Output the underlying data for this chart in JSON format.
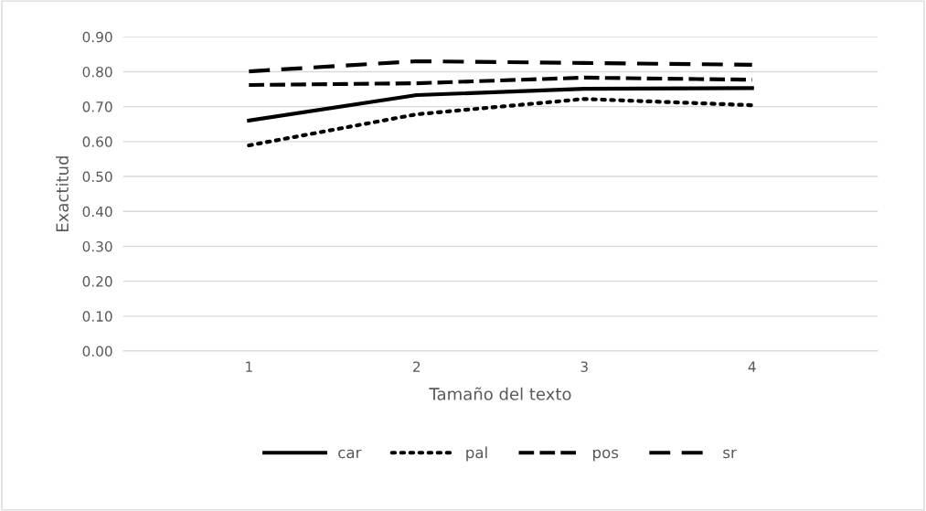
{
  "chart_data": {
    "type": "line",
    "xlabel": "Tamaño del texto",
    "ylabel": "Exactitud",
    "categories": [
      "1",
      "2",
      "3",
      "4"
    ],
    "series": [
      {
        "name": "car",
        "color": "#000000",
        "line_style": "solid",
        "values": [
          0.66,
          0.733,
          0.751,
          0.753
        ]
      },
      {
        "name": "pal",
        "color": "#000000",
        "line_style": "dotted",
        "values": [
          0.589,
          0.678,
          0.722,
          0.704
        ]
      },
      {
        "name": "pos",
        "color": "#000000",
        "line_style": "dashed",
        "values": [
          0.762,
          0.767,
          0.783,
          0.777
        ]
      },
      {
        "name": "sr",
        "color": "#000000",
        "line_style": "dashed",
        "values": [
          0.801,
          0.83,
          0.825,
          0.82
        ]
      }
    ],
    "ylim": [
      0,
      0.9
    ],
    "yticks": [
      {
        "value": 0,
        "label": "0.00"
      },
      {
        "value": 0.1,
        "label": "0.10"
      },
      {
        "value": 0.2,
        "label": "0.20"
      },
      {
        "value": 0.3,
        "label": "0.30"
      },
      {
        "value": 0.4,
        "label": "0.40"
      },
      {
        "value": 0.5,
        "label": "0.50"
      },
      {
        "value": 0.6,
        "label": "0.60"
      },
      {
        "value": 0.7,
        "label": "0.70"
      },
      {
        "value": 0.8,
        "label": "0.80"
      },
      {
        "value": 0.9,
        "label": "0.90"
      }
    ],
    "grid": "y",
    "legend": "bottom",
    "marker": "none"
  }
}
